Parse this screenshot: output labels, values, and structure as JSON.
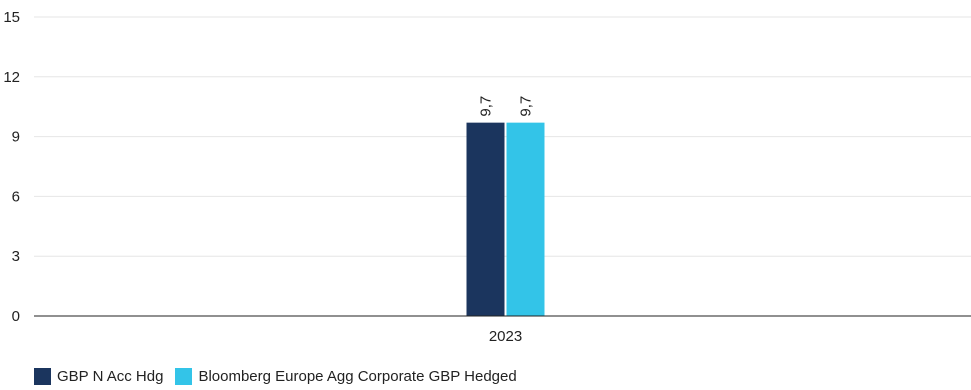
{
  "chart_data": {
    "type": "bar",
    "categories": [
      "2023"
    ],
    "series": [
      {
        "name": "GBP N Acc Hdg",
        "values": [
          9.7
        ],
        "color": "#1b355e"
      },
      {
        "name": "Bloomberg Europe Agg Corporate GBP Hedged",
        "values": [
          9.7
        ],
        "color": "#33c4e8"
      }
    ],
    "data_labels": [
      "9,7",
      "9,7"
    ],
    "y_ticks": [
      "0",
      "3",
      "6",
      "9",
      "12",
      "15"
    ],
    "ylim": [
      0,
      15
    ],
    "grid": true,
    "legend_position": "bottom-left",
    "title": "",
    "xlabel": "",
    "ylabel": ""
  }
}
